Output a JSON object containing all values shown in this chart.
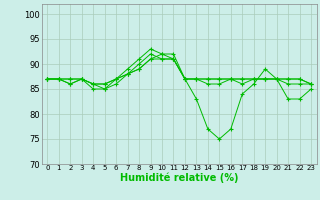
{
  "xlabel": "Humidité relative (%)",
  "ylabel": "",
  "background_color": "#cceee8",
  "grid_color": "#aaccbb",
  "line_color": "#00bb00",
  "spine_color": "#888888",
  "xlim": [
    -0.5,
    23.5
  ],
  "ylim": [
    70,
    102
  ],
  "yticks": [
    70,
    75,
    80,
    85,
    90,
    95,
    100
  ],
  "xticks": [
    0,
    1,
    2,
    3,
    4,
    5,
    6,
    7,
    8,
    9,
    10,
    11,
    12,
    13,
    14,
    15,
    16,
    17,
    18,
    19,
    20,
    21,
    22,
    23
  ],
  "series": [
    [
      87,
      87,
      86,
      87,
      86,
      85,
      87,
      89,
      91,
      93,
      92,
      92,
      87,
      83,
      77,
      75,
      77,
      84,
      86,
      89,
      87,
      83,
      83,
      85
    ],
    [
      87,
      87,
      86,
      87,
      85,
      85,
      86,
      88,
      90,
      92,
      91,
      91,
      87,
      87,
      86,
      86,
      87,
      86,
      87,
      87,
      87,
      86,
      86,
      86
    ],
    [
      87,
      87,
      87,
      87,
      86,
      86,
      87,
      88,
      89,
      91,
      91,
      91,
      87,
      87,
      87,
      87,
      87,
      87,
      87,
      87,
      87,
      87,
      87,
      86
    ],
    [
      87,
      87,
      87,
      87,
      86,
      86,
      87,
      88,
      89,
      91,
      92,
      91,
      87,
      87,
      87,
      87,
      87,
      87,
      87,
      87,
      87,
      87,
      87,
      86
    ]
  ],
  "xlabel_fontsize": 7,
  "tick_fontsize": 5,
  "ytick_fontsize": 6
}
